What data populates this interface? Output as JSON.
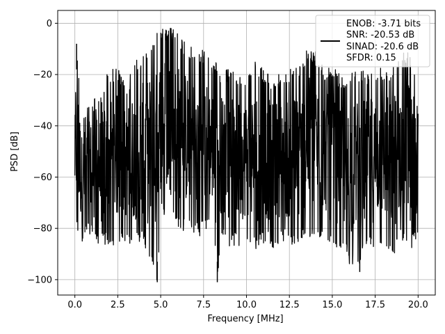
{
  "chart_data": {
    "type": "line",
    "xlabel": "Frequency [MHz]",
    "ylabel": "PSD [dB]",
    "xlim": [
      -1.0,
      21.0
    ],
    "ylim": [
      -106,
      5
    ],
    "xticks": [
      0.0,
      2.5,
      5.0,
      7.5,
      10.0,
      12.5,
      15.0,
      17.5,
      20.0
    ],
    "xtick_labels": [
      "0.0",
      "2.5",
      "5.0",
      "7.5",
      "10.0",
      "12.5",
      "15.0",
      "17.5",
      "20.0"
    ],
    "yticks": [
      0,
      -20,
      -40,
      -60,
      -80,
      -100
    ],
    "ytick_labels": [
      "0",
      "−20",
      "−40",
      "−60",
      "−80",
      "−100"
    ],
    "grid": true,
    "legend_placement": "top-right",
    "series": [
      {
        "color": "#000000",
        "x": [
          0.0,
          0.1,
          0.4,
          0.9,
          1.5,
          2.0,
          2.5,
          3.0,
          3.5,
          4.0,
          4.5,
          4.8,
          5.0,
          5.5,
          6.0,
          6.5,
          7.0,
          7.5,
          8.0,
          8.3,
          8.5,
          9.0,
          9.5,
          10.0,
          10.5,
          11.0,
          11.5,
          12.0,
          12.5,
          13.0,
          13.5,
          14.0,
          14.5,
          15.0,
          15.5,
          16.0,
          16.5,
          17.0,
          17.5,
          18.0,
          18.5,
          19.0,
          19.5,
          20.0
        ],
        "y_max": [
          -32,
          -8,
          -35,
          -30,
          -27,
          -17,
          -17,
          -25,
          -14,
          -12,
          -6,
          -3,
          -1,
          -1,
          -4,
          -8,
          -10,
          -10,
          -15,
          -15,
          -18,
          -18,
          -20,
          -20,
          -15,
          -18,
          -20,
          -20,
          -17,
          -17,
          -10,
          -10,
          -17,
          -17,
          -20,
          -20,
          -18,
          -18,
          -17,
          -17,
          -17,
          -10,
          -10,
          -23
        ],
        "y_min": [
          -75,
          -82,
          -86,
          -82,
          -88,
          -86,
          -87,
          -85,
          -88,
          -86,
          -96,
          -101,
          -75,
          -78,
          -80,
          -82,
          -84,
          -82,
          -80,
          -101,
          -84,
          -87,
          -88,
          -85,
          -89,
          -86,
          -88,
          -85,
          -87,
          -88,
          -84,
          -86,
          -82,
          -90,
          -88,
          -94,
          -95,
          -90,
          -88,
          -87,
          -93,
          -86,
          -90,
          -85
        ],
        "peaks": [
          {
            "x": 0.1,
            "y": -8
          },
          {
            "x": 4.8,
            "y": -101
          },
          {
            "x": 8.3,
            "y": -101
          },
          {
            "x": 16.6,
            "y": -97
          }
        ]
      }
    ]
  },
  "legend": {
    "line1": "ENOB: -3.71 bits",
    "line2": "SNR: -20.53 dB",
    "line3": "SINAD: -20.6 dB",
    "line4": "SFDR: 0.15",
    "line_color": "#000000"
  }
}
